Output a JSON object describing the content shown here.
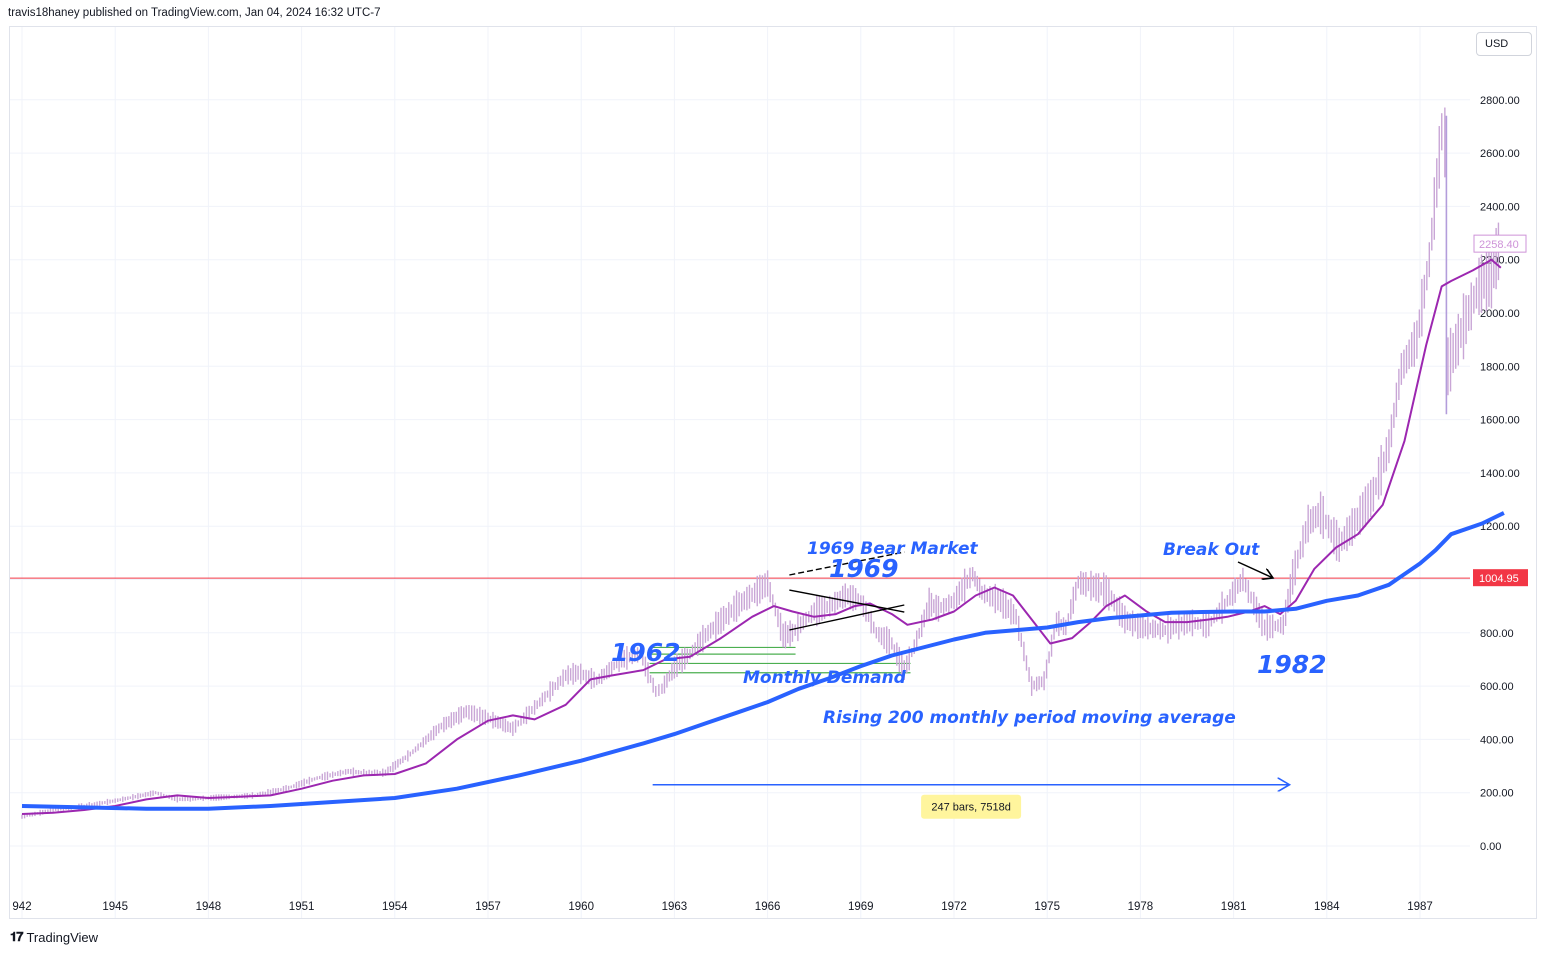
{
  "header": {
    "publisher": "travis18haney published on TradingView.com, Jan 04, 2024 16:32 UTC-7"
  },
  "toolbar": {
    "currency": "USD"
  },
  "footer": {
    "brand": "TradingView",
    "logo": "tradingview-logo-icon"
  },
  "colors": {
    "price_bars": "#c9a6d6",
    "ma_fast": "#9c27b0",
    "ma_slow": "#2962ff",
    "horizontal_line": "#f23645",
    "demand_lines": "#4caf50",
    "annotation_text": "#2962ff",
    "channel_lines": "#000000",
    "current_price_tag": "#ce93d8"
  },
  "chart_data": {
    "type": "line",
    "x_axis": {
      "ticks": [
        "942",
        "1945",
        "1948",
        "1951",
        "1954",
        "1957",
        "1960",
        "1963",
        "1966",
        "1969",
        "1972",
        "1975",
        "1978",
        "1981",
        "1984",
        "1987"
      ],
      "range": [
        1942,
        1989.7
      ]
    },
    "y_axis": {
      "ticks": [
        "2800.00",
        "2600.00",
        "2400.00",
        "2200.00",
        "2000.00",
        "1800.00",
        "1600.00",
        "1400.00",
        "1200.00",
        "1000.00",
        "800.00",
        "600.00",
        "400.00",
        "200.00",
        "0.00"
      ],
      "range": [
        -150,
        3000
      ],
      "grid": true
    },
    "series": [
      {
        "name": "",
        "style": "monthly bars",
        "x": [
          1942.0,
          1943.0,
          1944.0,
          1945.0,
          1946.3,
          1947.0,
          1948.0,
          1949.5,
          1950.5,
          1951.5,
          1952.5,
          1953.0,
          1953.7,
          1954.5,
          1955.5,
          1956.3,
          1957.0,
          1957.8,
          1958.5,
          1959.5,
          1959.9,
          1960.5,
          1961.3,
          1961.9,
          1962.4,
          1962.6,
          1963.0,
          1963.5,
          1964.0,
          1965.0,
          1966.0,
          1966.5,
          1966.8,
          1967.5,
          1968.0,
          1968.5,
          1969.0,
          1969.5,
          1970.0,
          1970.4,
          1970.8,
          1971.2,
          1971.5,
          1972.0,
          1972.6,
          1972.9,
          1973.5,
          1974.0,
          1974.5,
          1974.9,
          1975.3,
          1975.6,
          1976.0,
          1976.9,
          1977.5,
          1978.0,
          1978.8,
          1979.5,
          1980.2,
          1980.8,
          1981.3,
          1982.0,
          1982.6,
          1982.9,
          1983.4,
          1983.8,
          1984.4,
          1984.9,
          1985.5,
          1986.0,
          1986.4,
          1986.9,
          1987.3,
          1987.7,
          1987.8,
          1987.9,
          1988.4,
          1988.9,
          1989.3,
          1989.6
        ],
        "y": [
          110,
          135,
          150,
          170,
          200,
          175,
          180,
          190,
          215,
          255,
          280,
          275,
          275,
          345,
          450,
          505,
          480,
          440,
          520,
          640,
          650,
          620,
          700,
          720,
          580,
          590,
          670,
          720,
          790,
          900,
          985,
          790,
          800,
          880,
          900,
          940,
          920,
          800,
          760,
          660,
          770,
          910,
          890,
          920,
          1020,
          950,
          920,
          860,
          600,
          620,
          840,
          820,
          990,
          960,
          850,
          820,
          810,
          840,
          830,
          920,
          1000,
          820,
          830,
          1010,
          1210,
          1250,
          1130,
          1210,
          1320,
          1500,
          1790,
          1900,
          2200,
          2680,
          2640,
          1800,
          1950,
          2100,
          2150,
          2258.4
        ]
      },
      {
        "name": "",
        "style": "moving average (purple)",
        "x": [
          1942.0,
          1943.0,
          1944.0,
          1945.0,
          1946.0,
          1947.0,
          1948.0,
          1949.0,
          1950.0,
          1951.0,
          1952.0,
          1953.0,
          1954.0,
          1955.0,
          1956.0,
          1957.0,
          1957.8,
          1958.5,
          1959.5,
          1960.3,
          1961.0,
          1962.0,
          1962.7,
          1963.5,
          1964.5,
          1965.5,
          1966.2,
          1966.8,
          1967.5,
          1968.2,
          1968.8,
          1969.3,
          1970.0,
          1970.5,
          1971.3,
          1972.0,
          1972.7,
          1973.3,
          1973.9,
          1974.5,
          1975.1,
          1975.8,
          1976.4,
          1976.9,
          1977.5,
          1978.2,
          1978.8,
          1979.5,
          1980.2,
          1980.8,
          1981.5,
          1982.0,
          1982.5,
          1983.0,
          1983.6,
          1984.3,
          1985.0,
          1985.8,
          1986.5,
          1987.2,
          1987.7,
          1988.0,
          1988.7,
          1989.3,
          1989.6
        ],
        "y": [
          120,
          125,
          135,
          150,
          175,
          190,
          180,
          185,
          190,
          215,
          245,
          265,
          270,
          310,
          400,
          470,
          490,
          475,
          530,
          625,
          640,
          660,
          700,
          710,
          780,
          860,
          900,
          880,
          860,
          870,
          900,
          910,
          870,
          830,
          850,
          880,
          940,
          970,
          940,
          850,
          760,
          780,
          840,
          900,
          940,
          880,
          840,
          840,
          850,
          860,
          880,
          900,
          870,
          920,
          1040,
          1120,
          1170,
          1280,
          1520,
          1880,
          2100,
          2120,
          2160,
          2200,
          2170
        ]
      },
      {
        "name": "",
        "style": "200-period moving average (blue)",
        "x": [
          1942.0,
          1944.0,
          1946.0,
          1948.0,
          1950.0,
          1952.0,
          1954.0,
          1956.0,
          1958.0,
          1960.0,
          1962.0,
          1963.0,
          1964.0,
          1965.0,
          1966.0,
          1967.0,
          1968.0,
          1969.0,
          1970.0,
          1971.0,
          1972.0,
          1973.0,
          1974.0,
          1975.0,
          1976.0,
          1977.0,
          1978.0,
          1979.0,
          1980.0,
          1981.0,
          1982.0,
          1983.0,
          1984.0,
          1985.0,
          1986.0,
          1987.0,
          1987.5,
          1988.0,
          1989.0,
          1989.7
        ],
        "y": [
          150,
          145,
          140,
          140,
          150,
          165,
          180,
          215,
          265,
          320,
          385,
          420,
          460,
          500,
          540,
          590,
          630,
          675,
          715,
          745,
          775,
          800,
          810,
          820,
          840,
          855,
          865,
          875,
          878,
          880,
          880,
          890,
          920,
          940,
          980,
          1060,
          1110,
          1170,
          1210,
          1250
        ]
      }
    ],
    "horizontal_levels": {
      "resistance": 1004.95,
      "demand": [
        745,
        720,
        685,
        650
      ]
    },
    "price_tags": {
      "current": "2258.40",
      "level": "1004.95"
    },
    "annotations": {
      "bear_title": "1969 Bear Market",
      "year_1969": "1969",
      "year_1962": "1962",
      "demand": "Monthly Demand",
      "breakout": "Break Out",
      "year_1982": "1982",
      "ma_note": "Rising 200 monthly period moving average"
    },
    "measure": {
      "label": "247 bars, 7518d",
      "from": 1962.3,
      "to": 1982.8,
      "y": 230
    },
    "channel": {
      "from_year": 1966.7,
      "to_year": 1970.4
    }
  }
}
